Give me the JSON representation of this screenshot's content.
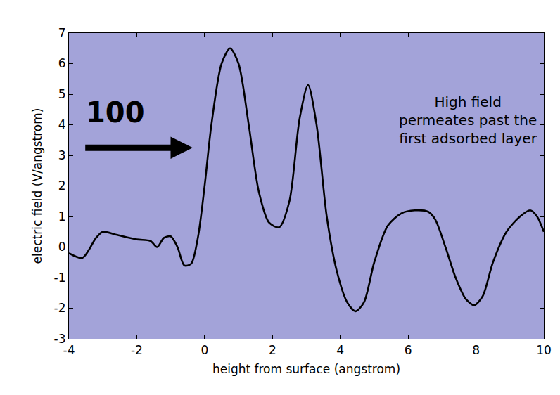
{
  "chart_data": {
    "type": "line",
    "xlabel": "height from surface (angstrom)",
    "ylabel": "electric field (V/angstrom)",
    "x": [
      -4,
      -3.6,
      -3.2,
      -3,
      -2.6,
      -2,
      -1.6,
      -1.4,
      -1.2,
      -1.0,
      -0.8,
      -0.6,
      -0.4,
      -0.2,
      0,
      0.2,
      0.5,
      0.75,
      1.0,
      1.3,
      1.6,
      1.9,
      2.2,
      2.5,
      2.8,
      3.05,
      3.3,
      3.6,
      3.9,
      4.2,
      4.45,
      4.7,
      5.0,
      5.4,
      5.8,
      6.2,
      6.6,
      6.8,
      7.1,
      7.4,
      7.7,
      7.95,
      8.2,
      8.5,
      8.9,
      9.3,
      9.6,
      9.8,
      10
    ],
    "values": [
      -0.2,
      -0.35,
      0.3,
      0.5,
      0.4,
      0.25,
      0.2,
      0.0,
      0.3,
      0.35,
      0.0,
      -0.6,
      -0.55,
      0.3,
      2.0,
      4.0,
      6.0,
      6.5,
      6.0,
      4.0,
      1.8,
      0.8,
      0.65,
      1.5,
      4.2,
      5.3,
      4.0,
      1.0,
      -0.8,
      -1.8,
      -2.1,
      -1.8,
      -0.5,
      0.7,
      1.1,
      1.2,
      1.15,
      0.9,
      0.0,
      -1.0,
      -1.7,
      -1.9,
      -1.6,
      -0.5,
      0.5,
      1.0,
      1.2,
      1.0,
      0.5
    ],
    "color": "#000000",
    "xlim": [
      -4,
      10
    ],
    "ylim": [
      -3,
      7
    ],
    "xticks": [
      -4,
      -2,
      0,
      2,
      4,
      6,
      8,
      10
    ],
    "yticks": [
      -3,
      -2,
      -1,
      0,
      1,
      2,
      3,
      4,
      5,
      6,
      7
    ],
    "grid": false,
    "annotations": [
      {
        "text": "100"
      },
      {
        "text": [
          "High field",
          "permeates past the",
          "first adsorbed layer"
        ]
      }
    ]
  }
}
